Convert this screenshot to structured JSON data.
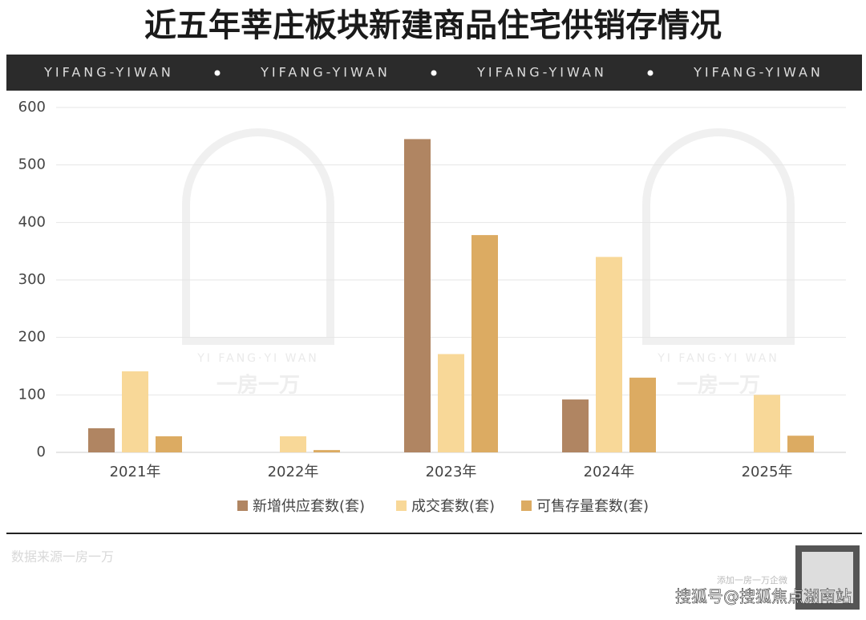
{
  "chart_data": {
    "type": "bar",
    "title": "近五年莘庄板块新建商品住宅供销存情况",
    "banner": [
      "YIFANG-YIWAN",
      "YIFANG-YIWAN",
      "YIFANG-YIWAN",
      "YIFANG-YIWAN"
    ],
    "watermark": [
      "YI FANG·YI WAN",
      "一房一万"
    ],
    "categories": [
      "2021年",
      "2022年",
      "2023年",
      "2024年",
      "2025年"
    ],
    "series": [
      {
        "name": "新增供应套数(套)",
        "color": "#b08562",
        "values": [
          42,
          0,
          545,
          92,
          0
        ]
      },
      {
        "name": "成交套数(套)",
        "color": "#f8d898",
        "values": [
          141,
          28,
          171,
          340,
          100
        ]
      },
      {
        "name": "可售存量套数(套)",
        "color": "#dcab62",
        "values": [
          28,
          4,
          378,
          130,
          29
        ]
      }
    ],
    "ylim": [
      0,
      600
    ],
    "yticks": [
      0,
      100,
      200,
      300,
      400,
      500,
      600
    ],
    "grid": true,
    "legend": "bottom",
    "source": "数据来源一房一万",
    "footer_note": "添加一房一万企微",
    "footer_watermark": "搜狐号@搜狐焦点湖南站"
  }
}
